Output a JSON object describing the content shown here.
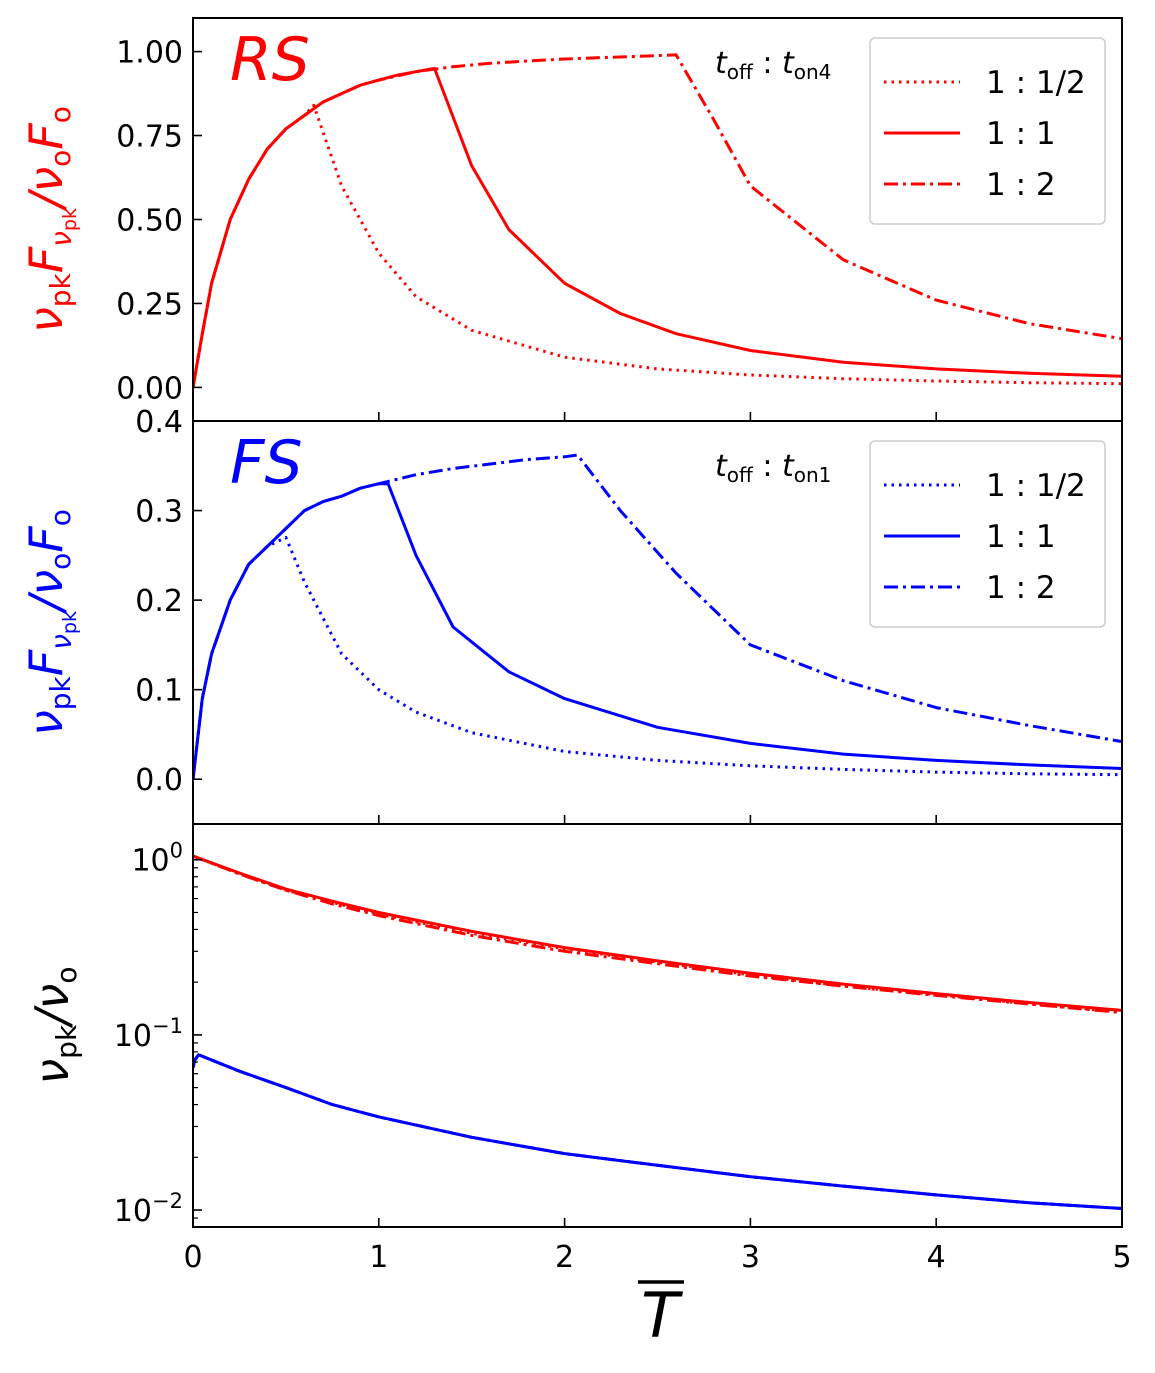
{
  "colors": {
    "rs": "#ff0000",
    "fs": "#0000ff",
    "axis": "#000000"
  },
  "x_axis": {
    "label": "T",
    "overline": true,
    "range": [
      0,
      5
    ],
    "ticks": [
      0,
      1,
      2,
      3,
      4,
      5
    ],
    "tick_labels": [
      "0",
      "1",
      "2",
      "3",
      "4",
      "5"
    ]
  },
  "chart_data": [
    {
      "type": "line",
      "panel": "top",
      "annotation": "RS",
      "legend_title": {
        "sym1": "t",
        "sub1": "off",
        "sep": " : ",
        "sym2": "t",
        "sub2": "on4"
      },
      "legend_position": "top-right",
      "ylabel": {
        "main": "ν",
        "sub": "pk",
        "F": "F",
        "sub2": "ν",
        "sub2sub": "pk",
        "slash": "/ν",
        "osub": "o",
        "Fo": "F",
        "Fosub": "o"
      },
      "ylim": [
        -0.1,
        1.1
      ],
      "yticks": [
        0,
        0.25,
        0.5,
        0.75,
        1.0
      ],
      "ytick_labels": [
        "0.00",
        "0.25",
        "0.50",
        "0.75",
        "1.00"
      ],
      "series": [
        {
          "name": "1 : 1/2",
          "style": "dotted",
          "x": [
            0,
            0.05,
            0.1,
            0.2,
            0.3,
            0.4,
            0.5,
            0.6,
            0.65,
            0.8,
            1.0,
            1.2,
            1.5,
            2.0,
            2.5,
            3.0,
            3.5,
            4.0,
            4.5,
            5.0
          ],
          "y": [
            0,
            0.16,
            0.31,
            0.5,
            0.62,
            0.71,
            0.77,
            0.81,
            0.84,
            0.6,
            0.4,
            0.27,
            0.17,
            0.09,
            0.055,
            0.037,
            0.026,
            0.019,
            0.014,
            0.011
          ]
        },
        {
          "name": "1 : 1",
          "style": "solid",
          "x": [
            0,
            0.05,
            0.1,
            0.2,
            0.3,
            0.4,
            0.5,
            0.6,
            0.7,
            0.8,
            0.9,
            1.0,
            1.1,
            1.2,
            1.3,
            1.5,
            1.7,
            2.0,
            2.3,
            2.6,
            3.0,
            3.5,
            4.0,
            4.5,
            5.0
          ],
          "y": [
            0,
            0.16,
            0.31,
            0.5,
            0.62,
            0.71,
            0.77,
            0.81,
            0.85,
            0.875,
            0.9,
            0.915,
            0.93,
            0.94,
            0.95,
            0.66,
            0.47,
            0.31,
            0.22,
            0.16,
            0.11,
            0.075,
            0.055,
            0.042,
            0.033
          ]
        },
        {
          "name": "1 : 2",
          "style": "dashdot",
          "x": [
            0,
            0.05,
            0.1,
            0.2,
            0.3,
            0.4,
            0.5,
            0.6,
            0.7,
            0.8,
            0.9,
            1.0,
            1.2,
            1.4,
            1.6,
            1.8,
            2.0,
            2.2,
            2.4,
            2.6,
            2.8,
            3.0,
            3.5,
            4.0,
            4.5,
            5.0
          ],
          "y": [
            0,
            0.16,
            0.31,
            0.5,
            0.62,
            0.71,
            0.77,
            0.81,
            0.85,
            0.875,
            0.9,
            0.915,
            0.94,
            0.955,
            0.965,
            0.972,
            0.978,
            0.982,
            0.986,
            0.99,
            0.8,
            0.6,
            0.38,
            0.26,
            0.19,
            0.145
          ]
        }
      ]
    },
    {
      "type": "line",
      "panel": "middle",
      "annotation": "FS",
      "legend_title": {
        "sym1": "t",
        "sub1": "off",
        "sep": " : ",
        "sym2": "t",
        "sub2": "on1"
      },
      "legend_position": "top-right",
      "ylabel": {
        "main": "ν",
        "sub": "pk",
        "F": "F",
        "sub2": "ν",
        "sub2sub": "pk",
        "slash": "/ν",
        "osub": "o",
        "Fo": "F",
        "Fosub": "o"
      },
      "ylim": [
        -0.05,
        0.4
      ],
      "yticks": [
        0,
        0.1,
        0.2,
        0.3,
        0.4
      ],
      "ytick_labels": [
        "0.0",
        "0.1",
        "0.2",
        "0.3",
        "0.4"
      ],
      "series": [
        {
          "name": "1 : 1/2",
          "style": "dotted",
          "x": [
            0,
            0.05,
            0.1,
            0.2,
            0.3,
            0.4,
            0.5,
            0.6,
            0.8,
            1.0,
            1.2,
            1.5,
            2.0,
            2.5,
            3.0,
            3.5,
            4.0,
            4.5,
            5.0
          ],
          "y": [
            0,
            0.09,
            0.14,
            0.2,
            0.24,
            0.26,
            0.27,
            0.22,
            0.14,
            0.1,
            0.075,
            0.052,
            0.031,
            0.021,
            0.015,
            0.011,
            0.008,
            0.006,
            0.005
          ]
        },
        {
          "name": "1 : 1",
          "style": "solid",
          "x": [
            0,
            0.05,
            0.1,
            0.2,
            0.3,
            0.4,
            0.5,
            0.6,
            0.7,
            0.8,
            0.9,
            1.0,
            1.05,
            1.2,
            1.4,
            1.7,
            2.0,
            2.5,
            3.0,
            3.5,
            4.0,
            4.5,
            5.0
          ],
          "y": [
            0,
            0.09,
            0.14,
            0.2,
            0.24,
            0.26,
            0.28,
            0.3,
            0.31,
            0.316,
            0.325,
            0.33,
            0.33,
            0.25,
            0.17,
            0.12,
            0.09,
            0.058,
            0.04,
            0.028,
            0.021,
            0.016,
            0.012
          ]
        },
        {
          "name": "1 : 2",
          "style": "dashdot",
          "x": [
            0,
            0.05,
            0.1,
            0.2,
            0.3,
            0.4,
            0.5,
            0.6,
            0.7,
            0.8,
            0.9,
            1.0,
            1.2,
            1.4,
            1.6,
            1.8,
            2.0,
            2.07,
            2.3,
            2.6,
            3.0,
            3.5,
            4.0,
            4.5,
            5.0
          ],
          "y": [
            0,
            0.09,
            0.14,
            0.2,
            0.24,
            0.26,
            0.28,
            0.3,
            0.31,
            0.316,
            0.325,
            0.33,
            0.34,
            0.347,
            0.352,
            0.357,
            0.36,
            0.362,
            0.3,
            0.23,
            0.15,
            0.11,
            0.08,
            0.06,
            0.042
          ]
        }
      ]
    },
    {
      "type": "line",
      "panel": "bottom",
      "yscale": "log",
      "ylabel": {
        "main": "ν",
        "sub": "pk",
        "slash": "/ν",
        "osub": "o"
      },
      "ylim": [
        0.008,
        1.6
      ],
      "yticks": [
        0.01,
        0.1,
        1
      ],
      "ytick_labels": [
        {
          "base": "10",
          "exp": "−2"
        },
        {
          "base": "10",
          "exp": "−1"
        },
        {
          "base": "10",
          "exp": "0"
        }
      ],
      "series": [
        {
          "name": "RS 1 : 1/2",
          "group": "rs",
          "style": "dotted",
          "x": [
            0,
            0.25,
            0.5,
            0.75,
            1.0,
            1.5,
            2.0,
            2.5,
            3.0,
            3.5,
            4.0,
            4.5,
            5.0
          ],
          "y": [
            1.05,
            0.83,
            0.67,
            0.57,
            0.49,
            0.38,
            0.31,
            0.26,
            0.22,
            0.19,
            0.17,
            0.15,
            0.135
          ]
        },
        {
          "name": "RS 1 : 1",
          "group": "rs",
          "style": "solid",
          "x": [
            0,
            0.25,
            0.5,
            0.75,
            1.0,
            1.5,
            2.0,
            2.5,
            3.0,
            3.5,
            4.0,
            4.5,
            5.0
          ],
          "y": [
            1.05,
            0.84,
            0.68,
            0.58,
            0.5,
            0.39,
            0.315,
            0.265,
            0.225,
            0.195,
            0.172,
            0.153,
            0.138
          ]
        },
        {
          "name": "RS 1 : 2",
          "group": "rs",
          "style": "dashdot",
          "x": [
            0,
            0.25,
            0.5,
            0.75,
            1.0,
            1.5,
            2.0,
            2.5,
            3.0,
            3.5,
            4.0,
            4.5,
            5.0
          ],
          "y": [
            1.05,
            0.83,
            0.67,
            0.56,
            0.48,
            0.37,
            0.3,
            0.255,
            0.217,
            0.19,
            0.168,
            0.15,
            0.134
          ]
        },
        {
          "name": "FS 1 : 1/2",
          "group": "fs",
          "style": "dotted",
          "x": [
            0,
            0.01,
            0.03,
            0.25,
            0.5,
            0.75,
            1.0,
            1.5,
            2.0,
            2.5,
            3.0,
            3.5,
            4.0,
            4.5,
            5.0
          ],
          "y": [
            0.065,
            0.072,
            0.077,
            0.062,
            0.05,
            0.04,
            0.034,
            0.026,
            0.021,
            0.018,
            0.0155,
            0.0137,
            0.0122,
            0.011,
            0.0102
          ]
        },
        {
          "name": "FS 1 : 1",
          "group": "fs",
          "style": "solid",
          "x": [
            0,
            0.01,
            0.03,
            0.25,
            0.5,
            0.75,
            1.0,
            1.5,
            2.0,
            2.5,
            3.0,
            3.5,
            4.0,
            4.5,
            5.0
          ],
          "y": [
            0.065,
            0.072,
            0.077,
            0.062,
            0.05,
            0.04,
            0.034,
            0.026,
            0.021,
            0.018,
            0.0155,
            0.0137,
            0.0122,
            0.011,
            0.0102
          ]
        },
        {
          "name": "FS 1 : 2",
          "group": "fs",
          "style": "dashdot",
          "x": [
            0,
            0.01,
            0.03,
            0.25,
            0.5,
            0.75,
            1.0,
            1.5,
            2.0,
            2.5,
            3.0,
            3.5,
            4.0,
            4.5,
            5.0
          ],
          "y": [
            0.065,
            0.072,
            0.077,
            0.062,
            0.05,
            0.04,
            0.034,
            0.026,
            0.021,
            0.018,
            0.0155,
            0.0137,
            0.0122,
            0.011,
            0.0102
          ]
        }
      ]
    }
  ]
}
